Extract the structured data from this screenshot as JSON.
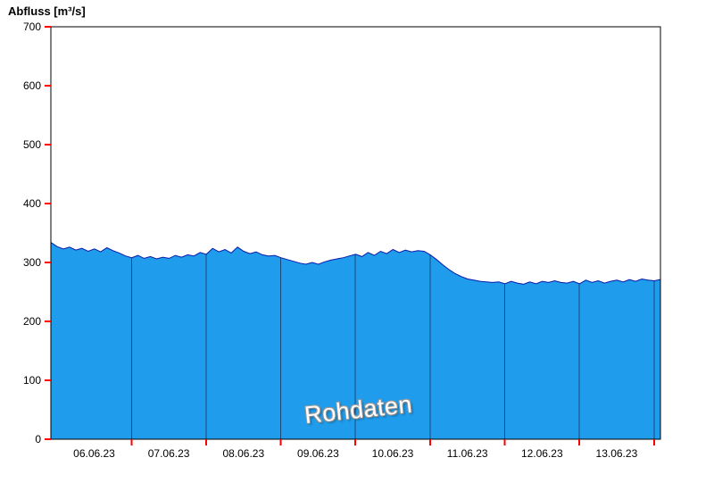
{
  "header": {
    "title": "Abfluss [m³/s]"
  },
  "chart_data": {
    "type": "area",
    "title": "Abfluss [m³/s]",
    "ylabel": "Abfluss [m³/s]",
    "unit": "m³/s",
    "watermark": "Rohdaten",
    "series_name": "Rohdaten",
    "legend": "none",
    "grid": "vertical-day-boundaries-inside-fill",
    "ylim": [
      0,
      700
    ],
    "y_ticks": [
      0,
      100,
      200,
      300,
      400,
      500,
      600,
      700
    ],
    "x_tick_labels": [
      {
        "t": 6.5,
        "label": "06.06.23"
      },
      {
        "t": 7.5,
        "label": "07.06.23"
      },
      {
        "t": 8.5,
        "label": "08.06.23"
      },
      {
        "t": 9.5,
        "label": "09.06.23"
      },
      {
        "t": 10.5,
        "label": "10.06.23"
      },
      {
        "t": 11.5,
        "label": "11.06.23"
      },
      {
        "t": 12.5,
        "label": "12.06.23"
      },
      {
        "t": 13.5,
        "label": "13.06.23"
      }
    ],
    "day_boundaries": [
      7,
      8,
      9,
      10,
      11,
      12,
      13,
      14
    ],
    "t_start": 5.92,
    "t_step_days": 0.0833333,
    "values": [
      334,
      327,
      323,
      326,
      321,
      324,
      319,
      323,
      318,
      325,
      320,
      316,
      311,
      308,
      312,
      307,
      310,
      306,
      309,
      307,
      312,
      309,
      313,
      311,
      317,
      314,
      324,
      318,
      322,
      316,
      326,
      319,
      315,
      318,
      313,
      311,
      312,
      308,
      305,
      302,
      299,
      297,
      300,
      297,
      301,
      304,
      306,
      308,
      311,
      314,
      310,
      317,
      312,
      319,
      315,
      322,
      317,
      321,
      318,
      320,
      319,
      313,
      305,
      296,
      288,
      281,
      276,
      272,
      270,
      268,
      267,
      266,
      267,
      264,
      268,
      265,
      263,
      267,
      264,
      268,
      266,
      269,
      266,
      265,
      268,
      264,
      270,
      266,
      269,
      265,
      268,
      270,
      267,
      271,
      268,
      272,
      270,
      269,
      271
    ],
    "colors": {
      "fill": "#1f9ceb",
      "line": "#0a1aa8",
      "grid": "#1a3a66",
      "tick": "#ff0000",
      "axis": "#000000",
      "text": "#000000"
    }
  }
}
